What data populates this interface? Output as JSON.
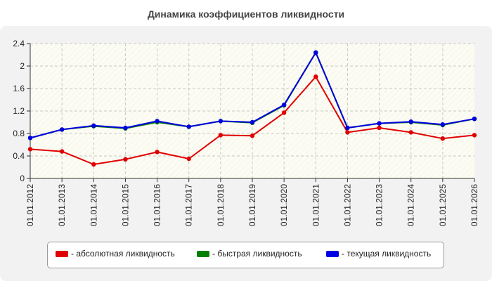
{
  "chart_data": {
    "type": "line",
    "title": "Динамика коэффициентов ликвидности",
    "categories": [
      "01.01.2012",
      "01.01.2013",
      "01.01.2014",
      "01.01.2015",
      "01.01.2016",
      "01.01.2017",
      "01.01.2018",
      "01.01.2019",
      "01.01.2020",
      "01.01.2021",
      "01.01.2022",
      "01.01.2023",
      "01.01.2024",
      "01.01.2025",
      "01.01.2026"
    ],
    "ylim": [
      0,
      2.4
    ],
    "yticks": [
      "0",
      "0.4",
      "0.8",
      "1.2",
      "1.6",
      "2",
      "2.4"
    ],
    "grid": true,
    "legend_position": "bottom",
    "series": [
      {
        "name": "- абсолютная ликвидность",
        "color": "#e00000",
        "values": [
          0.52,
          0.48,
          0.25,
          0.34,
          0.47,
          0.35,
          0.77,
          0.76,
          1.17,
          1.81,
          0.82,
          0.9,
          0.82,
          0.71,
          0.77
        ]
      },
      {
        "name": "- быстрая ликвидность",
        "color": "#008000",
        "values": [
          0.72,
          0.87,
          0.93,
          0.89,
          1.0,
          0.92,
          1.02,
          0.99,
          1.3,
          2.24,
          0.9,
          0.98,
          1.0,
          0.95,
          1.06
        ]
      },
      {
        "name": "- текущая ликвидность",
        "color": "#0000e0",
        "values": [
          0.72,
          0.87,
          0.94,
          0.9,
          1.02,
          0.92,
          1.02,
          1.0,
          1.31,
          2.24,
          0.9,
          0.98,
          1.01,
          0.96,
          1.06
        ]
      }
    ]
  }
}
